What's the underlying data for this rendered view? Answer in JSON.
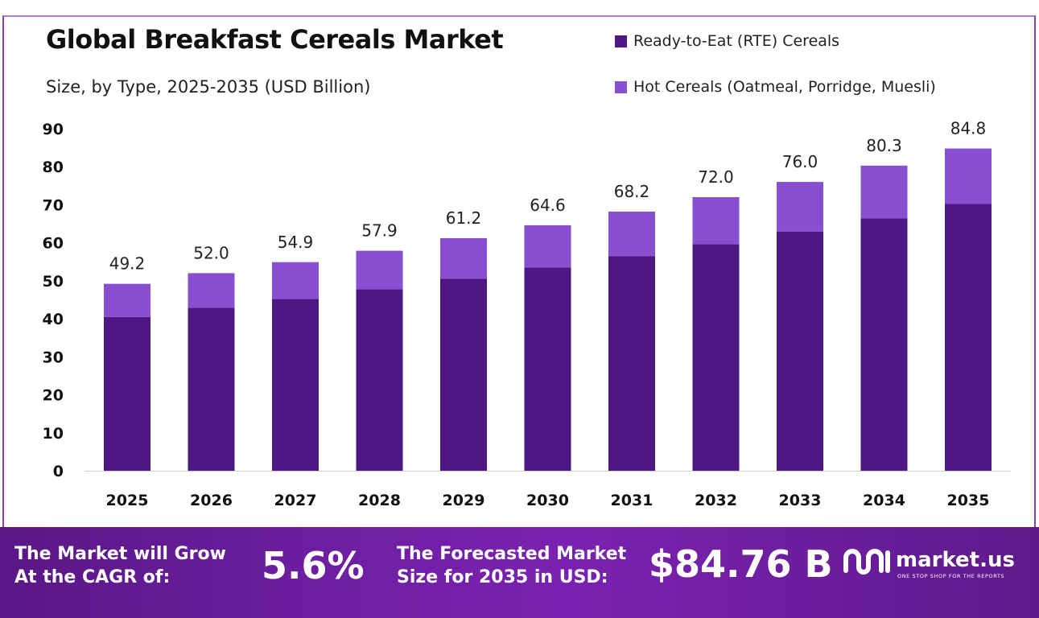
{
  "header": {
    "title": "Global Breakfast Cereals Market",
    "subtitle": "Size, by Type, 2025-2035 (USD Billion)"
  },
  "legend": [
    {
      "label": "Ready-to-Eat (RTE) Cereals",
      "color": "#4e1784"
    },
    {
      "label": "Hot Cereals (Oatmeal, Porridge, Muesli)",
      "color": "#8a4fd1"
    }
  ],
  "chart_data": {
    "type": "bar",
    "stacked": true,
    "categories": [
      "2025",
      "2026",
      "2027",
      "2028",
      "2029",
      "2030",
      "2031",
      "2032",
      "2033",
      "2034",
      "2035"
    ],
    "series": [
      {
        "name": "Ready-to-Eat (RTE) Cereals",
        "color": "#4e1784",
        "values": [
          40.5,
          42.9,
          45.2,
          47.8,
          50.5,
          53.5,
          56.5,
          59.6,
          62.9,
          66.4,
          70.2
        ]
      },
      {
        "name": "Hot Cereals (Oatmeal, Porridge, Muesli)",
        "color": "#8a4fd1",
        "values": [
          8.7,
          9.1,
          9.7,
          10.1,
          10.7,
          11.1,
          11.7,
          12.4,
          13.1,
          13.9,
          14.6
        ]
      }
    ],
    "totals": [
      "49.2",
      "52.0",
      "54.9",
      "57.9",
      "61.2",
      "64.6",
      "68.2",
      "72.0",
      "76.0",
      "80.3",
      "84.8"
    ],
    "yticks": [
      0,
      10,
      20,
      30,
      40,
      50,
      60,
      70,
      80,
      90
    ],
    "ylim": [
      0,
      90
    ],
    "grid": false,
    "legend_position": "top-right"
  },
  "footer": {
    "cagr_label_line1": "The Market will Grow",
    "cagr_label_line2": "At the CAGR of:",
    "cagr_value": "5.6%",
    "forecast_label_line1": "The Forecasted Market",
    "forecast_label_line2": "Size for 2035 in USD:",
    "forecast_value": "$84.76 B",
    "brand_name": "market.us",
    "brand_tagline": "ONE STOP SHOP FOR THE REPORTS"
  }
}
